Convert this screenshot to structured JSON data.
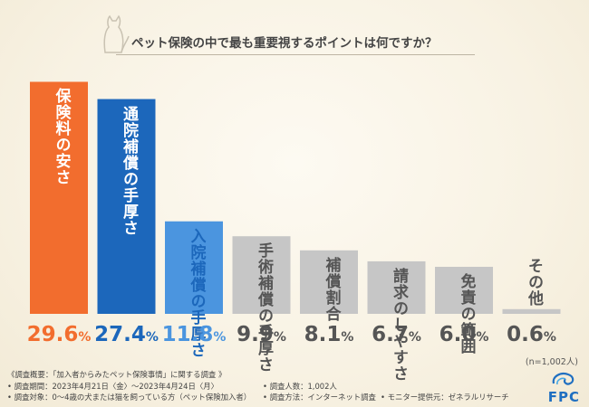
{
  "title": "ペット保険の中で最も重要視するポイントは何ですか？",
  "sample_note": "(n=1,002人)",
  "colors": {
    "orange": "#f26d2e",
    "blue": "#1c67bb",
    "light_blue": "#4b95df",
    "gray": "#c6c6c6",
    "label_dark": "#555555"
  },
  "chart_data": {
    "type": "bar",
    "title": "ペット保険の中で最も重要視するポイントは何ですか？",
    "categories": [
      "保険料の安さ",
      "通院補償の手厚さ",
      "入院補償の手厚さ",
      "手術補償の手厚さ",
      "補償割合",
      "請求のしやすさ",
      "免責の範囲",
      "その他"
    ],
    "values": [
      29.6,
      27.4,
      11.8,
      9.9,
      8.1,
      6.7,
      6.0,
      0.6
    ],
    "ylim": [
      0,
      30
    ],
    "unit": "%",
    "bar_colors": [
      "#f26d2e",
      "#1c67bb",
      "#4b95df",
      "#c6c6c6",
      "#c6c6c6",
      "#c6c6c6",
      "#c6c6c6",
      "#c6c6c6"
    ],
    "label_colors": [
      "#ffffff",
      "#ffffff",
      "#1c67bb",
      "#555555",
      "#555555",
      "#555555",
      "#555555",
      "#555555"
    ],
    "pct_colors": [
      "#f26d2e",
      "#1c67bb",
      "#4b95df",
      "#555555",
      "#555555",
      "#555555",
      "#555555",
      "#555555"
    ]
  },
  "footer": {
    "overview": "《調査概要：「加入者からみたペット保険事情」に関する調査 》",
    "period": "• 調査期間：2023年4月21日〈金〉～2023年4月24日〈月〉",
    "target": "• 調査対象：0～4歳の犬または猫を飼っている方（ペット保険加入者）",
    "count": "• 調査人数：1,002人",
    "method": "• 調査方法：インターネット調査",
    "provider": "• モニター提供元：ゼネラルリサーチ"
  },
  "logo": {
    "text": "FPC"
  }
}
